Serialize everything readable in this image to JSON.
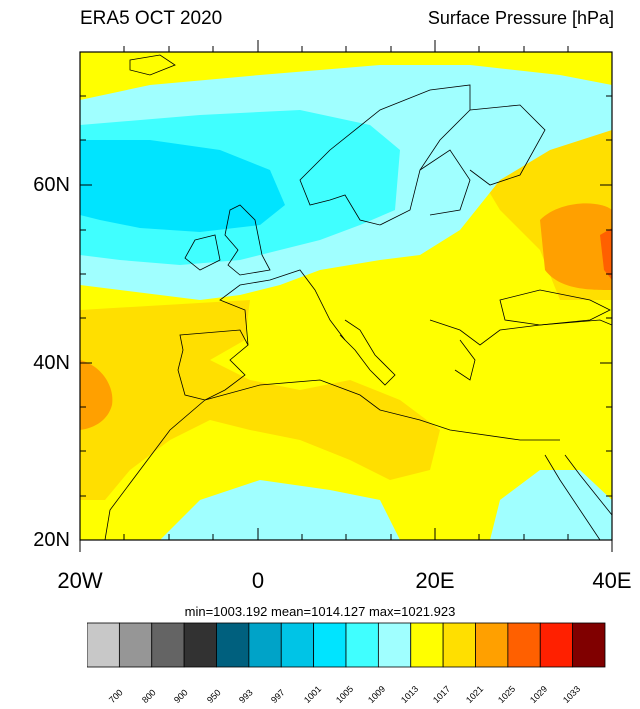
{
  "title_left": "ERA5 OCT 2020",
  "title_right": "Surface Pressure [hPa]",
  "y_ticks": [
    "60N",
    "40N",
    "20N"
  ],
  "x_ticks": [
    "20W",
    "0",
    "20E",
    "40E"
  ],
  "stats": "min=1003.192  mean=1014.127  max=1021.923",
  "colorbar": {
    "levels": [
      "700",
      "800",
      "900",
      "950",
      "993",
      "997",
      "1001",
      "1005",
      "1009",
      "1013",
      "1017",
      "1021",
      "1025",
      "1029",
      "1033"
    ],
    "colors": [
      "#c8c8c8",
      "#969696",
      "#646464",
      "#323232",
      "#00607e",
      "#00a3c8",
      "#00c4e6",
      "#00e4ff",
      "#40ffff",
      "#a0ffff",
      "#ffff00",
      "#ffdf00",
      "#ffa000",
      "#ff6000",
      "#ff2000",
      "#800000"
    ]
  }
}
